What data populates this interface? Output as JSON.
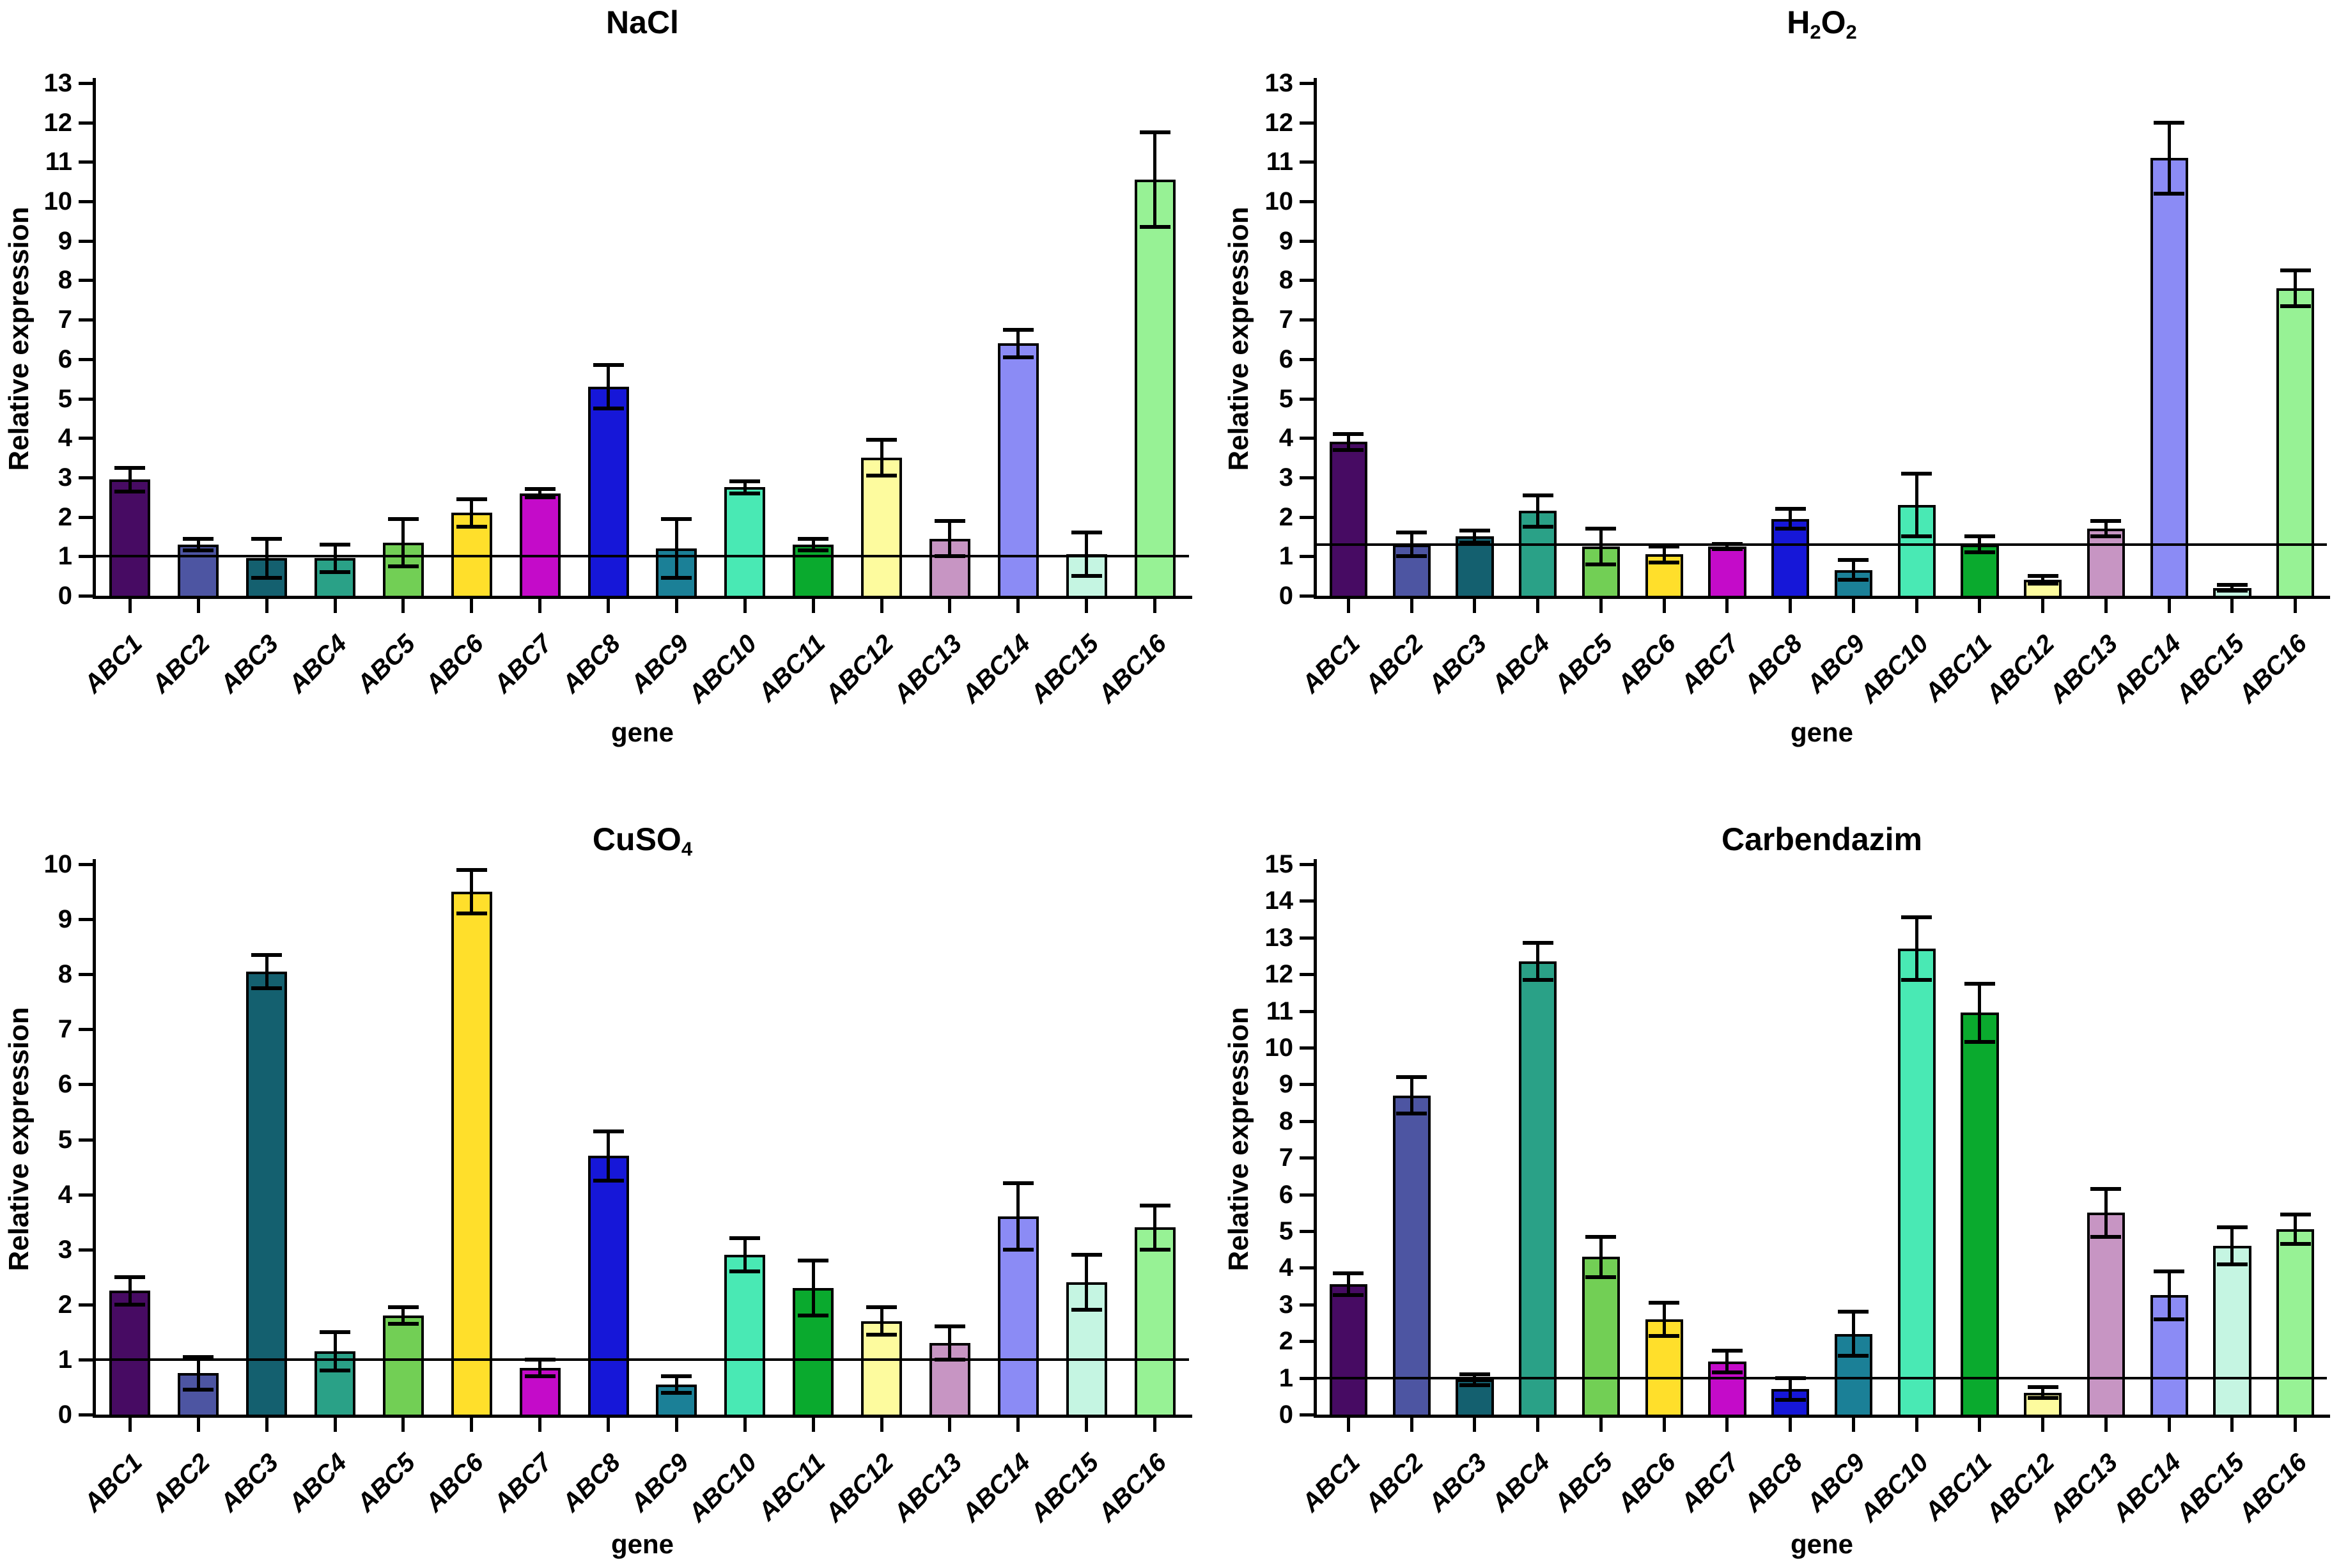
{
  "figure": {
    "ylabel": "Relative expression",
    "xlabel": "gene",
    "bar_outline_color": "#000000",
    "reference_line_color": "#000000",
    "background_color": "#ffffff"
  },
  "chart_data": [
    {
      "type": "bar",
      "title": "NaCl",
      "title_segments": [
        {
          "t": "NaCl",
          "sub": false
        }
      ],
      "xlabel": "gene",
      "ylabel": "Relative expression",
      "ylim": [
        0,
        13
      ],
      "ytick_step": 1,
      "reference_line_y": 1.0,
      "grid": false,
      "legend": "none",
      "categories": [
        "ABC1",
        "ABC2",
        "ABC3",
        "ABC4",
        "ABC5",
        "ABC6",
        "ABC7",
        "ABC8",
        "ABC9",
        "ABC10",
        "ABC11",
        "ABC12",
        "ABC13",
        "ABC14",
        "ABC15",
        "ABC16"
      ],
      "values": [
        2.95,
        1.3,
        0.95,
        0.95,
        1.35,
        2.1,
        2.6,
        5.3,
        1.2,
        2.75,
        1.3,
        3.5,
        1.45,
        6.4,
        1.05,
        10.55
      ],
      "errors": [
        0.3,
        0.15,
        0.5,
        0.35,
        0.6,
        0.35,
        0.1,
        0.55,
        0.75,
        0.15,
        0.15,
        0.45,
        0.45,
        0.35,
        0.55,
        1.2
      ],
      "colors": [
        "#470b63",
        "#4d55a2",
        "#14606f",
        "#2aa187",
        "#72cf55",
        "#ffdf2b",
        "#c40bc9",
        "#1617d8",
        "#1b8097",
        "#49e9b4",
        "#0aaa2e",
        "#fdfb9e",
        "#c795c3",
        "#8b8bf5",
        "#c5f5e2",
        "#97f295"
      ]
    },
    {
      "type": "bar",
      "title": "H2O2",
      "title_segments": [
        {
          "t": "H",
          "sub": false
        },
        {
          "t": "2",
          "sub": true
        },
        {
          "t": "O",
          "sub": false
        },
        {
          "t": "2",
          "sub": true
        }
      ],
      "xlabel": "gene",
      "ylabel": "Relative expression",
      "ylim": [
        0,
        13
      ],
      "ytick_step": 1,
      "reference_line_y": 1.3,
      "grid": false,
      "legend": "none",
      "categories": [
        "ABC1",
        "ABC2",
        "ABC3",
        "ABC4",
        "ABC5",
        "ABC6",
        "ABC7",
        "ABC8",
        "ABC9",
        "ABC10",
        "ABC11",
        "ABC12",
        "ABC13",
        "ABC14",
        "ABC15",
        "ABC16"
      ],
      "values": [
        3.9,
        1.3,
        1.5,
        2.15,
        1.25,
        1.05,
        1.25,
        1.95,
        0.65,
        2.3,
        1.3,
        0.4,
        1.7,
        11.1,
        0.2,
        7.8
      ],
      "errors": [
        0.2,
        0.3,
        0.15,
        0.4,
        0.45,
        0.2,
        0.06,
        0.25,
        0.25,
        0.8,
        0.2,
        0.1,
        0.2,
        0.9,
        0.07,
        0.45
      ],
      "colors": [
        "#470b63",
        "#4d55a2",
        "#14606f",
        "#2aa187",
        "#72cf55",
        "#ffdf2b",
        "#c40bc9",
        "#1617d8",
        "#1b8097",
        "#49e9b4",
        "#0aaa2e",
        "#fdfb9e",
        "#c795c3",
        "#8b8bf5",
        "#c5f5e2",
        "#97f295"
      ]
    },
    {
      "type": "bar",
      "title": "CuSO4",
      "title_segments": [
        {
          "t": "CuSO",
          "sub": false
        },
        {
          "t": "4",
          "sub": true
        }
      ],
      "xlabel": "gene",
      "ylabel": "Relative expression",
      "ylim": [
        0,
        10
      ],
      "ytick_step": 1,
      "reference_line_y": 1.0,
      "grid": false,
      "legend": "none",
      "categories": [
        "ABC1",
        "ABC2",
        "ABC3",
        "ABC4",
        "ABC5",
        "ABC6",
        "ABC7",
        "ABC8",
        "ABC9",
        "ABC10",
        "ABC11",
        "ABC12",
        "ABC13",
        "ABC14",
        "ABC15",
        "ABC16"
      ],
      "values": [
        2.25,
        0.75,
        8.05,
        1.15,
        1.8,
        9.5,
        0.85,
        4.7,
        0.55,
        2.9,
        2.3,
        1.7,
        1.3,
        3.6,
        2.4,
        3.4
      ],
      "errors": [
        0.25,
        0.3,
        0.3,
        0.35,
        0.15,
        0.4,
        0.15,
        0.45,
        0.15,
        0.3,
        0.5,
        0.25,
        0.3,
        0.6,
        0.5,
        0.4
      ],
      "colors": [
        "#470b63",
        "#4d55a2",
        "#14606f",
        "#2aa187",
        "#72cf55",
        "#ffdf2b",
        "#c40bc9",
        "#1617d8",
        "#1b8097",
        "#49e9b4",
        "#0aaa2e",
        "#fdfb9e",
        "#c795c3",
        "#8b8bf5",
        "#c5f5e2",
        "#97f295"
      ]
    },
    {
      "type": "bar",
      "title": "Carbendazim",
      "title_segments": [
        {
          "t": "Carbendazim",
          "sub": false
        }
      ],
      "xlabel": "gene",
      "ylabel": "Relative expression",
      "ylim": [
        0,
        15
      ],
      "ytick_step": 1,
      "reference_line_y": 1.0,
      "grid": false,
      "legend": "none",
      "categories": [
        "ABC1",
        "ABC2",
        "ABC3",
        "ABC4",
        "ABC5",
        "ABC6",
        "ABC7",
        "ABC8",
        "ABC9",
        "ABC10",
        "ABC11",
        "ABC12",
        "ABC13",
        "ABC14",
        "ABC15",
        "ABC16"
      ],
      "values": [
        3.55,
        8.7,
        0.95,
        12.35,
        4.3,
        2.6,
        1.45,
        0.7,
        2.2,
        12.7,
        10.95,
        0.6,
        5.5,
        3.25,
        4.6,
        5.05
      ],
      "errors": [
        0.3,
        0.5,
        0.15,
        0.5,
        0.55,
        0.45,
        0.3,
        0.3,
        0.6,
        0.85,
        0.8,
        0.15,
        0.65,
        0.65,
        0.5,
        0.4
      ],
      "colors": [
        "#470b63",
        "#4d55a2",
        "#14606f",
        "#2aa187",
        "#72cf55",
        "#ffdf2b",
        "#c40bc9",
        "#1617d8",
        "#1b8097",
        "#49e9b4",
        "#0aaa2e",
        "#fdfb9e",
        "#c795c3",
        "#8b8bf5",
        "#c5f5e2",
        "#97f295"
      ]
    }
  ]
}
